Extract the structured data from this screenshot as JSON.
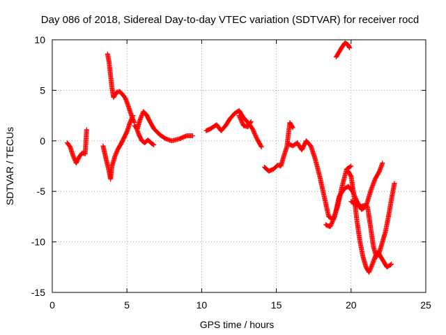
{
  "chart_data": {
    "type": "scatter",
    "marker": "plus",
    "color": "#ff0000",
    "title": "Day 086 of 2018, Sidereal Day-to-day VTEC variation (SDTVAR) for receiver rocd",
    "xlabel": "GPS time / hours",
    "ylabel": "SDTVAR / TECUs",
    "xlim": [
      0,
      25
    ],
    "ylim": [
      -15,
      10
    ],
    "xticks": [
      0,
      5,
      10,
      15,
      20,
      25
    ],
    "yticks": [
      -15,
      -10,
      -5,
      0,
      5,
      10
    ],
    "xtick_labels": [
      "0",
      "5",
      "10",
      "15",
      "20",
      "25"
    ],
    "ytick_labels": [
      "-15",
      "-10",
      "-5",
      "0",
      "5",
      "10"
    ],
    "grid": true,
    "series": [
      {
        "name": "seg1",
        "x": [
          1.0,
          1.2,
          1.4,
          1.6,
          1.8,
          2.0,
          2.2,
          2.3
        ],
        "y": [
          -0.2,
          -0.6,
          -1.5,
          -2.2,
          -1.6,
          -1.2,
          -1.3,
          1.1
        ]
      },
      {
        "name": "seg2",
        "x": [
          3.4,
          3.6,
          3.8,
          3.9,
          4.0,
          4.2,
          4.4,
          4.6,
          4.8,
          5.0,
          5.2,
          5.4
        ],
        "y": [
          -0.5,
          -1.8,
          -3.0,
          -3.8,
          -2.5,
          -1.5,
          -0.8,
          -0.3,
          0.3,
          0.9,
          1.8,
          2.5
        ]
      },
      {
        "name": "seg3",
        "x": [
          3.7,
          3.8,
          3.9,
          4.0,
          4.1,
          4.3,
          4.5,
          4.7,
          4.9,
          5.1,
          5.3,
          5.5
        ],
        "y": [
          8.6,
          7.8,
          6.5,
          5.2,
          4.3,
          4.8,
          4.9,
          4.6,
          4.2,
          3.4,
          2.5,
          1.8
        ]
      },
      {
        "name": "seg4",
        "x": [
          5.5,
          5.7,
          5.9,
          6.1,
          6.3,
          6.5,
          6.8,
          7.2,
          7.6,
          8.0,
          8.5,
          9.0,
          9.4
        ],
        "y": [
          1.5,
          1.2,
          2.2,
          2.9,
          2.6,
          2.0,
          1.2,
          0.6,
          0.2,
          0.0,
          0.2,
          0.5,
          0.5
        ]
      },
      {
        "name": "seg5",
        "x": [
          5.6,
          5.8,
          6.0,
          6.2,
          6.4,
          6.6,
          6.8
        ],
        "y": [
          1.4,
          0.6,
          0.0,
          -0.2,
          0.1,
          -0.2,
          -0.4
        ]
      },
      {
        "name": "seg6",
        "x": [
          10.3,
          10.6,
          11.0,
          11.3,
          11.6,
          11.9,
          12.2,
          12.5,
          12.8,
          13.1,
          13.4,
          13.7,
          14.0
        ],
        "y": [
          1.0,
          1.2,
          1.6,
          1.0,
          1.5,
          2.2,
          2.7,
          3.0,
          2.3,
          1.8,
          1.2,
          0.2,
          -0.6
        ]
      },
      {
        "name": "seg7",
        "x": [
          12.5,
          12.8,
          13.1,
          13.3
        ],
        "y": [
          2.5,
          1.5,
          1.4,
          1.9
        ]
      },
      {
        "name": "seg8",
        "x": [
          14.2,
          14.5,
          14.8,
          15.1,
          15.3,
          15.5,
          15.7,
          15.9,
          16.1
        ],
        "y": [
          -2.6,
          -3.0,
          -2.8,
          -2.4,
          -2.5,
          -1.5,
          -0.6,
          1.8,
          1.3
        ]
      },
      {
        "name": "seg9",
        "x": [
          15.8,
          16.1,
          16.4,
          16.7,
          17.0,
          17.3,
          17.6,
          17.9,
          18.2,
          18.5,
          18.8,
          19.1,
          19.4,
          19.7,
          20.0
        ],
        "y": [
          -0.3,
          -0.5,
          -0.2,
          -0.9,
          0.0,
          -0.5,
          -1.8,
          -3.5,
          -5.5,
          -7.5,
          -7.8,
          -6.5,
          -4.5,
          -2.8,
          -2.5
        ]
      },
      {
        "name": "seg10",
        "x": [
          18.3,
          18.6,
          18.9,
          19.2,
          19.5,
          19.8,
          20.1,
          20.4,
          20.7,
          21.0,
          21.3,
          21.6,
          21.9,
          22.1
        ],
        "y": [
          -8.3,
          -8.5,
          -7.5,
          -5.5,
          -4.8,
          -4.5,
          -5.0,
          -6.0,
          -6.8,
          -6.5,
          -5.0,
          -3.8,
          -3.0,
          -2.2
        ]
      },
      {
        "name": "seg11",
        "x": [
          19.8,
          20.0,
          20.2,
          20.4,
          20.6,
          20.8,
          21.0,
          21.2,
          21.4,
          21.6,
          21.8,
          22.0,
          22.2,
          22.4,
          22.7
        ],
        "y": [
          -3.0,
          -3.5,
          -5.5,
          -8.0,
          -10.0,
          -11.5,
          -12.5,
          -13.0,
          -12.3,
          -11.5,
          -11.0,
          -11.5,
          -12.0,
          -12.5,
          -12.2
        ]
      },
      {
        "name": "seg12",
        "x": [
          20.0,
          20.3,
          20.6,
          20.9,
          21.1,
          21.3,
          21.5,
          21.7,
          21.9,
          22.1,
          22.3,
          22.5,
          22.7,
          22.9
        ],
        "y": [
          -6.0,
          -6.3,
          -6.5,
          -6.4,
          -6.5,
          -8.5,
          -10.5,
          -11.5,
          -11.0,
          -10.0,
          -9.0,
          -7.5,
          -5.8,
          -4.2
        ]
      },
      {
        "name": "seg13",
        "x": [
          19.0,
          19.2,
          19.4,
          19.6,
          19.8,
          19.9
        ],
        "y": [
          8.3,
          8.8,
          9.3,
          9.7,
          9.5,
          9.2
        ]
      }
    ]
  }
}
